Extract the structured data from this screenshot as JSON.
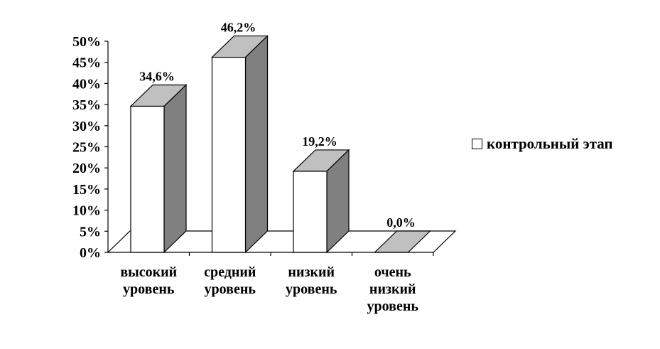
{
  "chart_data": {
    "type": "bar",
    "style": "3d-column",
    "categories": [
      [
        "высокий",
        "уровень"
      ],
      [
        "средний",
        "уровень"
      ],
      [
        "низкий",
        "уровень"
      ],
      [
        "очень",
        "низкий",
        "уровень"
      ]
    ],
    "series": [
      {
        "name": "контрольный этап",
        "values": [
          34.6,
          46.2,
          19.2,
          0.0
        ],
        "value_labels": [
          "34,6%",
          "46,2%",
          "19,2%",
          "0,0%"
        ]
      }
    ],
    "ylim": [
      0,
      50
    ],
    "yticks": [
      "0%",
      "5%",
      "10%",
      "15%",
      "20%",
      "25%",
      "30%",
      "35%",
      "40%",
      "45%",
      "50%"
    ],
    "grid": false,
    "legend_position": "right",
    "colors": {
      "front": "#ffffff",
      "top": "#c0c0c0",
      "side": "#808080",
      "outline": "#000000"
    }
  }
}
